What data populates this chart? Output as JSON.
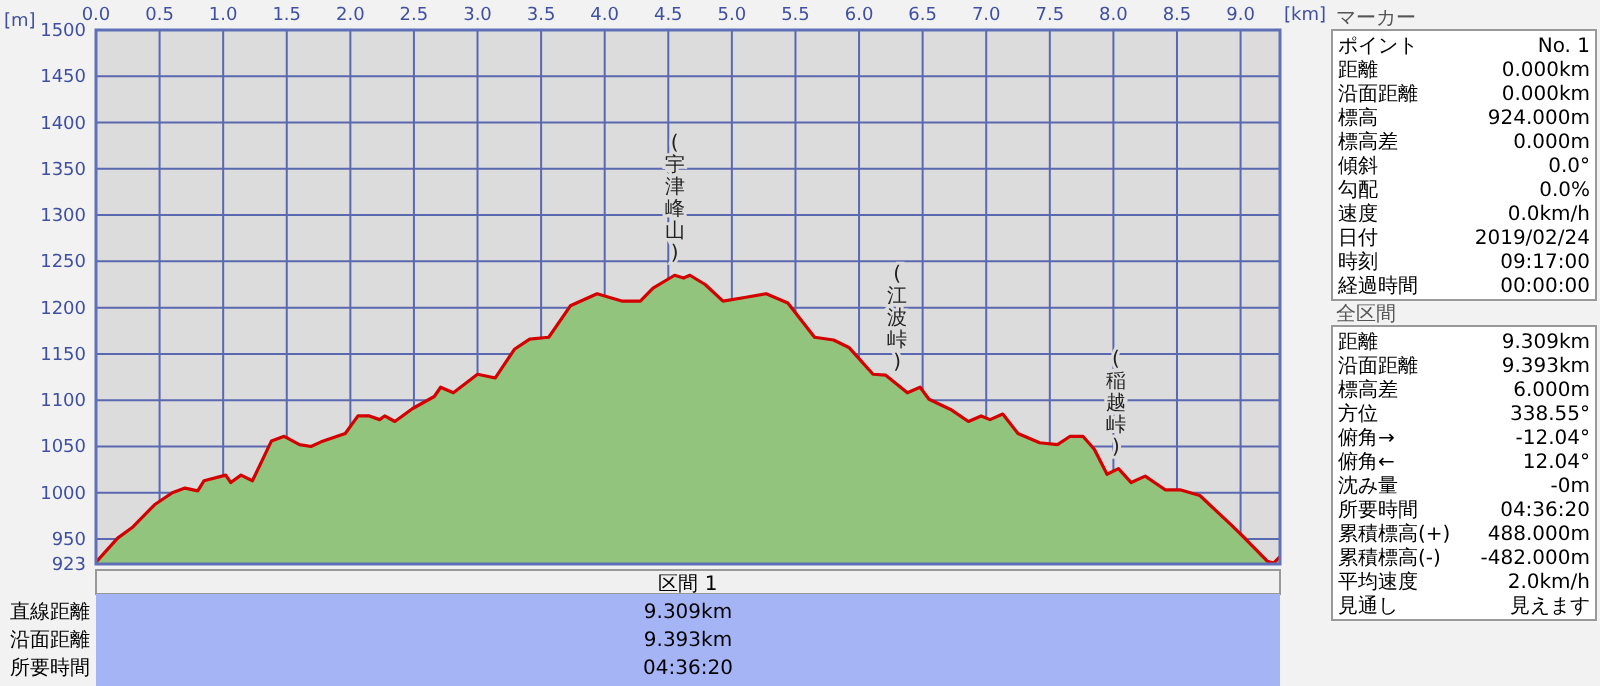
{
  "chart_data": [
    {
      "type": "area",
      "xlabel": "[km]",
      "ylabel": "[m]",
      "grid": true,
      "xlim": [
        0,
        9.31
      ],
      "ylim": [
        923,
        1500
      ],
      "xticks": [
        {
          "value": 0,
          "label": "0.0"
        },
        {
          "value": 0.5,
          "label": "0.5"
        },
        {
          "value": 1,
          "label": "1.0"
        },
        {
          "value": 1.5,
          "label": "1.5"
        },
        {
          "value": 2,
          "label": "2.0"
        },
        {
          "value": 2.5,
          "label": "2.5"
        },
        {
          "value": 3,
          "label": "3.0"
        },
        {
          "value": 3.5,
          "label": "3.5"
        },
        {
          "value": 4,
          "label": "4.0"
        },
        {
          "value": 4.5,
          "label": "4.5"
        },
        {
          "value": 5,
          "label": "5.0"
        },
        {
          "value": 5.5,
          "label": "5.5"
        },
        {
          "value": 6,
          "label": "6.0"
        },
        {
          "value": 6.5,
          "label": "6.5"
        },
        {
          "value": 7,
          "label": "7.0"
        },
        {
          "value": 7.5,
          "label": "7.5"
        },
        {
          "value": 8,
          "label": "8.0"
        },
        {
          "value": 8.5,
          "label": "8.5"
        },
        {
          "value": 9,
          "label": "9.0"
        }
      ],
      "yticks": [
        923,
        950,
        1000,
        1050,
        1100,
        1150,
        1200,
        1250,
        1300,
        1350,
        1400,
        1450,
        1500
      ],
      "annotations": [
        {
          "text": "(宇津峰山)",
          "x": 4.55,
          "y": 1235
        },
        {
          "text": "(江波峠)",
          "x": 6.3,
          "y": 1118
        },
        {
          "text": "(稲越峠)",
          "x": 8.02,
          "y": 1026
        }
      ],
      "series": [
        {
          "color": "#93c47d",
          "x": [
            0,
            0.02,
            0.17,
            0.29,
            0.46,
            0.6,
            0.7,
            0.8,
            0.85,
            1.02,
            1.06,
            1.14,
            1.23,
            1.38,
            1.48,
            1.6,
            1.69,
            1.77,
            1.96,
            2.06,
            2.15,
            2.23,
            2.27,
            2.35,
            2.49,
            2.66,
            2.71,
            2.81,
            3.0,
            3.14,
            3.29,
            3.41,
            3.56,
            3.73,
            3.94,
            4.14,
            4.28,
            4.38,
            4.55,
            4.62,
            4.67,
            4.79,
            4.93,
            5.1,
            5.27,
            5.44,
            5.65,
            5.8,
            5.92,
            6.11,
            6.21,
            6.38,
            6.48,
            6.55,
            6.72,
            6.86,
            6.96,
            7.03,
            7.13,
            7.25,
            7.42,
            7.56,
            7.66,
            7.76,
            7.85,
            7.95,
            8.04,
            8.14,
            8.25,
            8.41,
            8.53,
            8.68,
            8.92,
            9.04,
            9.21,
            9.26,
            9.31
          ],
          "values": [
            925,
            928,
            951,
            963,
            987,
            1000,
            1005,
            1002,
            1013,
            1019,
            1011,
            1019,
            1013,
            1056,
            1061,
            1052,
            1050,
            1055,
            1064,
            1083,
            1083,
            1079,
            1083,
            1077,
            1091,
            1104,
            1114,
            1108,
            1128,
            1124,
            1155,
            1166,
            1168,
            1202,
            1215,
            1207,
            1207,
            1221,
            1235,
            1232,
            1235,
            1225,
            1207,
            1211,
            1215,
            1205,
            1168,
            1165,
            1157,
            1128,
            1127,
            1108,
            1114,
            1101,
            1090,
            1077,
            1083,
            1079,
            1085,
            1064,
            1054,
            1052,
            1061,
            1061,
            1047,
            1020,
            1026,
            1011,
            1018,
            1003,
            1003,
            997,
            966,
            950,
            926,
            924,
            931
          ]
        }
      ]
    },
    {
      "type": "other",
      "title": "マーカー",
      "categories": [
        "ポイント",
        "距離",
        "沿面距離",
        "標高",
        "標高差",
        "傾斜",
        "勾配",
        "速度",
        "日付",
        "時刻",
        "経過時間"
      ],
      "value_labels": [
        "No. 1",
        "0.000km",
        "0.000km",
        "924.000m",
        "0.000m",
        "0.0°",
        "0.0%",
        "0.0km/h",
        "2019/02/24",
        "09:17:00",
        "00:00:00"
      ]
    },
    {
      "type": "other",
      "title": "全区間",
      "categories": [
        "距離",
        "沿面距離",
        "標高差",
        "方位",
        "俯角→",
        "俯角←",
        "沈み量",
        "所要時間",
        "累積標高(+)",
        "累積標高(-)",
        "平均速度",
        "見通し"
      ],
      "value_labels": [
        "9.309km",
        "9.393km",
        "6.000m",
        "338.55°",
        "-12.04°",
        "12.04°",
        "-0m",
        "04:36:20",
        "488.000m",
        "-482.000m",
        "2.0km/h",
        "見えます"
      ]
    },
    {
      "type": "other",
      "title": "区間 1",
      "categories": [
        "直線距離",
        "沿面距離",
        "所要時間"
      ],
      "value_labels": [
        "9.309km",
        "9.393km",
        "04:36:20"
      ]
    }
  ]
}
